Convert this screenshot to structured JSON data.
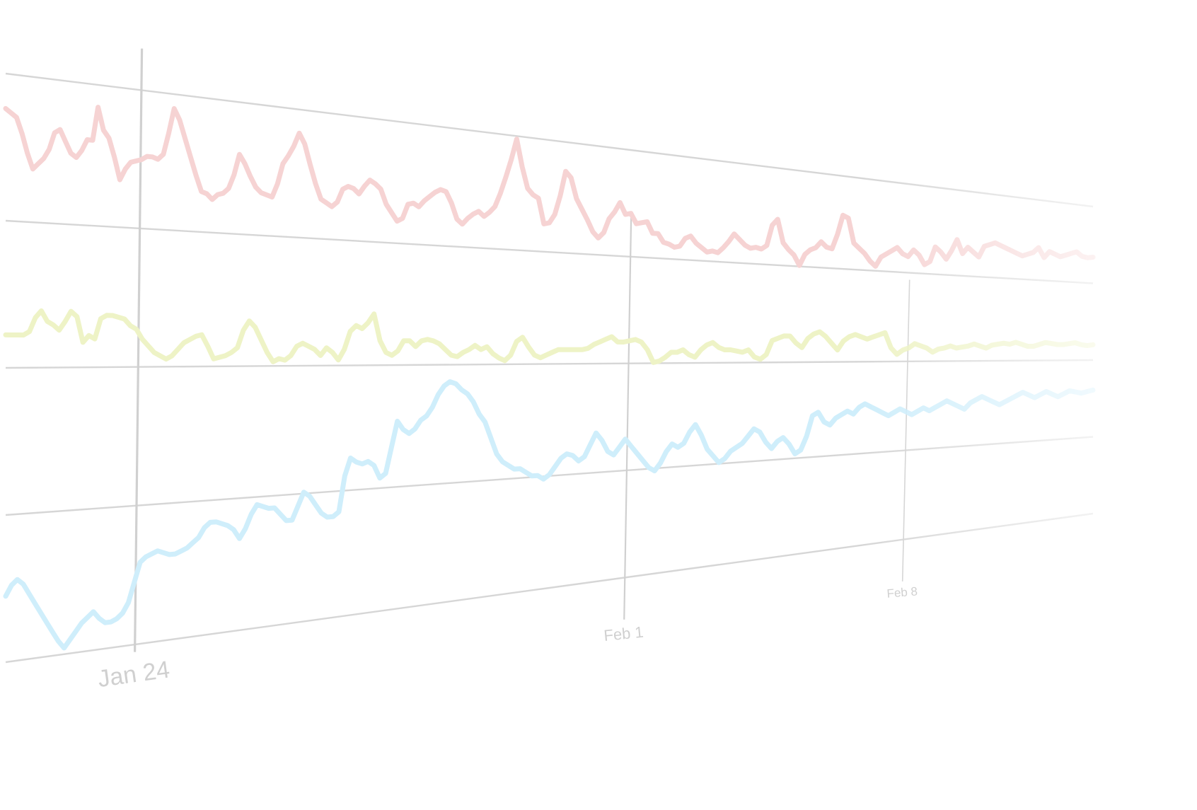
{
  "chart_data": {
    "type": "line",
    "title": "",
    "xlabel": "",
    "ylabel": "",
    "grid": true,
    "legend": "none",
    "x_ticks": [
      "Jan 24",
      "Feb 1",
      "Feb 8"
    ],
    "series": [
      {
        "color": "#f6d3d3",
        "values": [
          0.82,
          0.8,
          0.78,
          0.7,
          0.6,
          0.52,
          0.55,
          0.58,
          0.63,
          0.72,
          0.74,
          0.68,
          0.62,
          0.6,
          0.64,
          0.7,
          0.7,
          0.88,
          0.76,
          0.72,
          0.62,
          0.5,
          0.56,
          0.6,
          0.61,
          0.62,
          0.64,
          0.64,
          0.63,
          0.66,
          0.78,
          0.92,
          0.86,
          0.76,
          0.66,
          0.56,
          0.47,
          0.46,
          0.43,
          0.46,
          0.47,
          0.5,
          0.58,
          0.7,
          0.65,
          0.58,
          0.52,
          0.49,
          0.48,
          0.47,
          0.55,
          0.67,
          0.72,
          0.78,
          0.86,
          0.8,
          0.68,
          0.57,
          0.48,
          0.46,
          0.44,
          0.47,
          0.55,
          0.57,
          0.56,
          0.53,
          0.58,
          0.62,
          0.6,
          0.57,
          0.48,
          0.43,
          0.38,
          0.4,
          0.49,
          0.5,
          0.48,
          0.52,
          0.55,
          0.58,
          0.6,
          0.59,
          0.52,
          0.42,
          0.39,
          0.43,
          0.46,
          0.48,
          0.45,
          0.48,
          0.52,
          0.61,
          0.72,
          0.84,
          0.98,
          0.8,
          0.66,
          0.62,
          0.6,
          0.43,
          0.44,
          0.5,
          0.63,
          0.8,
          0.76,
          0.62,
          0.55,
          0.48,
          0.4,
          0.36,
          0.4,
          0.5,
          0.55,
          0.62,
          0.54,
          0.55,
          0.48,
          0.49,
          0.5,
          0.42,
          0.42,
          0.36,
          0.35,
          0.33,
          0.34,
          0.4,
          0.42,
          0.37,
          0.34,
          0.31,
          0.32,
          0.31,
          0.35,
          0.4,
          0.46,
          0.42,
          0.38,
          0.36,
          0.37,
          0.36,
          0.39,
          0.55,
          0.6,
          0.42,
          0.37,
          0.33,
          0.25,
          0.34,
          0.38,
          0.4,
          0.45,
          0.41,
          0.4,
          0.52,
          0.68,
          0.66,
          0.46,
          0.42,
          0.38,
          0.32,
          0.28,
          0.36,
          0.39,
          0.42,
          0.45,
          0.4,
          0.38,
          0.44,
          0.4,
          0.32,
          0.35,
          0.48,
          0.44,
          0.38,
          0.46,
          0.56,
          0.44,
          0.5,
          0.46,
          0.42,
          0.52,
          0.54,
          0.56,
          0.54,
          0.52,
          0.5,
          0.48,
          0.46,
          0.48,
          0.5,
          0.55,
          0.46,
          0.52,
          0.5,
          0.48,
          0.5,
          0.52,
          0.54,
          0.5,
          0.49,
          0.5
        ]
      },
      {
        "color": "#eef3c6",
        "values": [
          0.52,
          0.52,
          0.52,
          0.52,
          0.54,
          0.62,
          0.66,
          0.6,
          0.58,
          0.55,
          0.6,
          0.66,
          0.63,
          0.48,
          0.52,
          0.5,
          0.62,
          0.64,
          0.64,
          0.63,
          0.62,
          0.58,
          0.56,
          0.5,
          0.46,
          0.42,
          0.4,
          0.38,
          0.4,
          0.44,
          0.48,
          0.5,
          0.52,
          0.53,
          0.46,
          0.38,
          0.39,
          0.4,
          0.42,
          0.45,
          0.56,
          0.62,
          0.58,
          0.5,
          0.42,
          0.36,
          0.38,
          0.37,
          0.4,
          0.46,
          0.48,
          0.46,
          0.44,
          0.4,
          0.45,
          0.42,
          0.37,
          0.44,
          0.56,
          0.6,
          0.58,
          0.62,
          0.68,
          0.5,
          0.42,
          0.4,
          0.43,
          0.5,
          0.5,
          0.46,
          0.5,
          0.51,
          0.5,
          0.48,
          0.44,
          0.4,
          0.39,
          0.42,
          0.44,
          0.47,
          0.44,
          0.46,
          0.41,
          0.38,
          0.36,
          0.4,
          0.5,
          0.53,
          0.46,
          0.4,
          0.38,
          0.4,
          0.42,
          0.44,
          0.44,
          0.44,
          0.44,
          0.44,
          0.45,
          0.48,
          0.5,
          0.52,
          0.54,
          0.5,
          0.5,
          0.51,
          0.52,
          0.5,
          0.44,
          0.34,
          0.35,
          0.38,
          0.42,
          0.42,
          0.44,
          0.4,
          0.38,
          0.44,
          0.48,
          0.5,
          0.46,
          0.44,
          0.44,
          0.43,
          0.42,
          0.44,
          0.38,
          0.36,
          0.4,
          0.52,
          0.54,
          0.56,
          0.56,
          0.5,
          0.46,
          0.54,
          0.58,
          0.6,
          0.56,
          0.5,
          0.44,
          0.52,
          0.56,
          0.58,
          0.56,
          0.54,
          0.56,
          0.58,
          0.6,
          0.46,
          0.4,
          0.44,
          0.46,
          0.5,
          0.48,
          0.46,
          0.42,
          0.45,
          0.46,
          0.48,
          0.46,
          0.47,
          0.48,
          0.5,
          0.48,
          0.46,
          0.49,
          0.5,
          0.51,
          0.5,
          0.52,
          0.5,
          0.48,
          0.48,
          0.5,
          0.52,
          0.51,
          0.5,
          0.5,
          0.51,
          0.52,
          0.5,
          0.49,
          0.5
        ]
      },
      {
        "color": "#cfeefb",
        "values": [
          0.3,
          0.34,
          0.36,
          0.34,
          0.3,
          0.26,
          0.22,
          0.18,
          0.14,
          0.1,
          0.07,
          0.1,
          0.13,
          0.16,
          0.18,
          0.2,
          0.17,
          0.15,
          0.15,
          0.16,
          0.18,
          0.22,
          0.3,
          0.38,
          0.4,
          0.41,
          0.42,
          0.41,
          0.4,
          0.4,
          0.41,
          0.42,
          0.44,
          0.46,
          0.5,
          0.52,
          0.52,
          0.51,
          0.5,
          0.48,
          0.44,
          0.48,
          0.54,
          0.58,
          0.57,
          0.56,
          0.56,
          0.53,
          0.5,
          0.5,
          0.56,
          0.62,
          0.6,
          0.56,
          0.52,
          0.5,
          0.5,
          0.52,
          0.68,
          0.76,
          0.74,
          0.73,
          0.74,
          0.72,
          0.66,
          0.68,
          0.8,
          0.92,
          0.88,
          0.86,
          0.88,
          0.92,
          0.94,
          0.98,
          1.04,
          1.08,
          1.1,
          1.09,
          1.06,
          1.04,
          1.0,
          0.94,
          0.9,
          0.82,
          0.74,
          0.7,
          0.68,
          0.66,
          0.66,
          0.64,
          0.62,
          0.62,
          0.6,
          0.62,
          0.66,
          0.7,
          0.72,
          0.71,
          0.68,
          0.7,
          0.76,
          0.82,
          0.78,
          0.72,
          0.7,
          0.74,
          0.78,
          0.74,
          0.7,
          0.66,
          0.62,
          0.6,
          0.64,
          0.7,
          0.74,
          0.72,
          0.74,
          0.8,
          0.84,
          0.78,
          0.7,
          0.66,
          0.62,
          0.64,
          0.68,
          0.7,
          0.72,
          0.76,
          0.8,
          0.78,
          0.72,
          0.68,
          0.72,
          0.74,
          0.7,
          0.64,
          0.66,
          0.74,
          0.86,
          0.88,
          0.82,
          0.8,
          0.84,
          0.86,
          0.88,
          0.86,
          0.9,
          0.92,
          0.9,
          0.88,
          0.86,
          0.84,
          0.86,
          0.88,
          0.86,
          0.84,
          0.86,
          0.88,
          0.86,
          0.88,
          0.9,
          0.92,
          0.9,
          0.88,
          0.86,
          0.9,
          0.92,
          0.94,
          0.92,
          0.9,
          0.88,
          0.9,
          0.92,
          0.94,
          0.96,
          0.94,
          0.92,
          0.94,
          0.96,
          0.94,
          0.92,
          0.94,
          0.96,
          0.95,
          0.94,
          0.95,
          0.96
        ]
      }
    ]
  }
}
